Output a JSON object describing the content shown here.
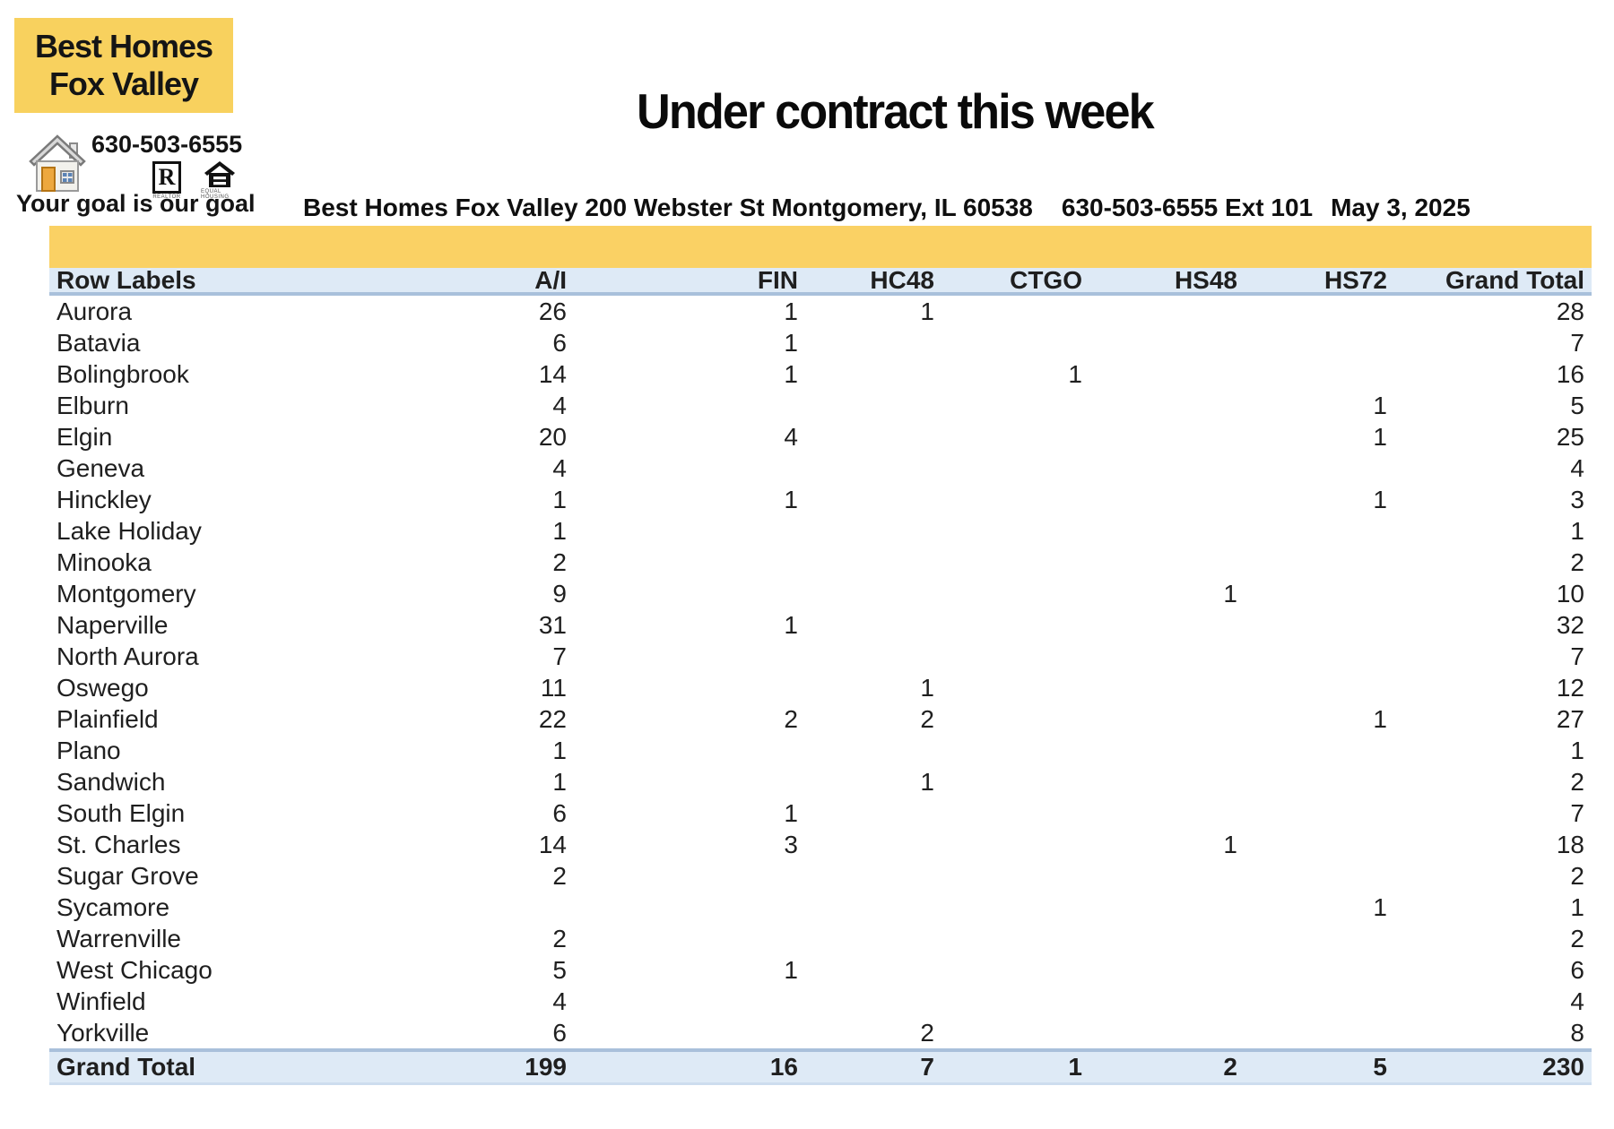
{
  "logo": {
    "name_line1": "Best Homes",
    "name_line2": "Fox Valley",
    "phone": "630-503-6555",
    "tagline": "Your goal is our goal",
    "realtor_letter": "R",
    "realtor_caption": "REALTOR",
    "equal_housing_caption": "EQUAL HOUSING",
    "yellow": "#f8d15e"
  },
  "header": {
    "title": "Under contract this week",
    "address": "Best Homes Fox Valley 200 Webster St Montgomery, IL 60538",
    "phone": "630-503-6555 Ext 101",
    "date": "May 3, 2025"
  },
  "table": {
    "columns": [
      "Row Labels",
      "A/I",
      "FIN",
      "HC48",
      "CTGO",
      "HS48",
      "HS72",
      "Grand Total"
    ],
    "rows": [
      {
        "label": "Aurora",
        "ai": "26",
        "fin": "1",
        "hc48": "1",
        "ctgo": "",
        "hs48": "",
        "hs72": "",
        "total": "28"
      },
      {
        "label": "Batavia",
        "ai": "6",
        "fin": "1",
        "hc48": "",
        "ctgo": "",
        "hs48": "",
        "hs72": "",
        "total": "7"
      },
      {
        "label": "Bolingbrook",
        "ai": "14",
        "fin": "1",
        "hc48": "",
        "ctgo": "1",
        "hs48": "",
        "hs72": "",
        "total": "16"
      },
      {
        "label": "Elburn",
        "ai": "4",
        "fin": "",
        "hc48": "",
        "ctgo": "",
        "hs48": "",
        "hs72": "1",
        "total": "5"
      },
      {
        "label": "Elgin",
        "ai": "20",
        "fin": "4",
        "hc48": "",
        "ctgo": "",
        "hs48": "",
        "hs72": "1",
        "total": "25"
      },
      {
        "label": "Geneva",
        "ai": "4",
        "fin": "",
        "hc48": "",
        "ctgo": "",
        "hs48": "",
        "hs72": "",
        "total": "4"
      },
      {
        "label": "Hinckley",
        "ai": "1",
        "fin": "1",
        "hc48": "",
        "ctgo": "",
        "hs48": "",
        "hs72": "1",
        "total": "3"
      },
      {
        "label": "Lake Holiday",
        "ai": "1",
        "fin": "",
        "hc48": "",
        "ctgo": "",
        "hs48": "",
        "hs72": "",
        "total": "1"
      },
      {
        "label": "Minooka",
        "ai": "2",
        "fin": "",
        "hc48": "",
        "ctgo": "",
        "hs48": "",
        "hs72": "",
        "total": "2"
      },
      {
        "label": "Montgomery",
        "ai": "9",
        "fin": "",
        "hc48": "",
        "ctgo": "",
        "hs48": "1",
        "hs72": "",
        "total": "10"
      },
      {
        "label": "Naperville",
        "ai": "31",
        "fin": "1",
        "hc48": "",
        "ctgo": "",
        "hs48": "",
        "hs72": "",
        "total": "32"
      },
      {
        "label": "North Aurora",
        "ai": "7",
        "fin": "",
        "hc48": "",
        "ctgo": "",
        "hs48": "",
        "hs72": "",
        "total": "7"
      },
      {
        "label": "Oswego",
        "ai": "11",
        "fin": "",
        "hc48": "1",
        "ctgo": "",
        "hs48": "",
        "hs72": "",
        "total": "12"
      },
      {
        "label": "Plainfield",
        "ai": "22",
        "fin": "2",
        "hc48": "2",
        "ctgo": "",
        "hs48": "",
        "hs72": "1",
        "total": "27"
      },
      {
        "label": "Plano",
        "ai": "1",
        "fin": "",
        "hc48": "",
        "ctgo": "",
        "hs48": "",
        "hs72": "",
        "total": "1"
      },
      {
        "label": "Sandwich",
        "ai": "1",
        "fin": "",
        "hc48": "1",
        "ctgo": "",
        "hs48": "",
        "hs72": "",
        "total": "2"
      },
      {
        "label": "South Elgin",
        "ai": "6",
        "fin": "1",
        "hc48": "",
        "ctgo": "",
        "hs48": "",
        "hs72": "",
        "total": "7"
      },
      {
        "label": "St. Charles",
        "ai": "14",
        "fin": "3",
        "hc48": "",
        "ctgo": "",
        "hs48": "1",
        "hs72": "",
        "total": "18"
      },
      {
        "label": "Sugar Grove",
        "ai": "2",
        "fin": "",
        "hc48": "",
        "ctgo": "",
        "hs48": "",
        "hs72": "",
        "total": "2"
      },
      {
        "label": "Sycamore",
        "ai": "",
        "fin": "",
        "hc48": "",
        "ctgo": "",
        "hs48": "",
        "hs72": "1",
        "total": "1"
      },
      {
        "label": "Warrenville",
        "ai": "2",
        "fin": "",
        "hc48": "",
        "ctgo": "",
        "hs48": "",
        "hs72": "",
        "total": "2"
      },
      {
        "label": "West Chicago",
        "ai": "5",
        "fin": "1",
        "hc48": "",
        "ctgo": "",
        "hs48": "",
        "hs72": "",
        "total": "6"
      },
      {
        "label": "Winfield",
        "ai": "4",
        "fin": "",
        "hc48": "",
        "ctgo": "",
        "hs48": "",
        "hs72": "",
        "total": "4"
      },
      {
        "label": "Yorkville",
        "ai": "6",
        "fin": "",
        "hc48": "2",
        "ctgo": "",
        "hs48": "",
        "hs72": "",
        "total": "8"
      }
    ],
    "grand_total": {
      "label": "Grand Total",
      "ai": "199",
      "fin": "16",
      "hc48": "7",
      "ctgo": "1",
      "hs48": "2",
      "hs72": "5",
      "total": "230"
    },
    "colors": {
      "band_yellow": "#fad164",
      "header_bg": "#deeaf6",
      "rule_blue": "#a9c0db"
    }
  }
}
